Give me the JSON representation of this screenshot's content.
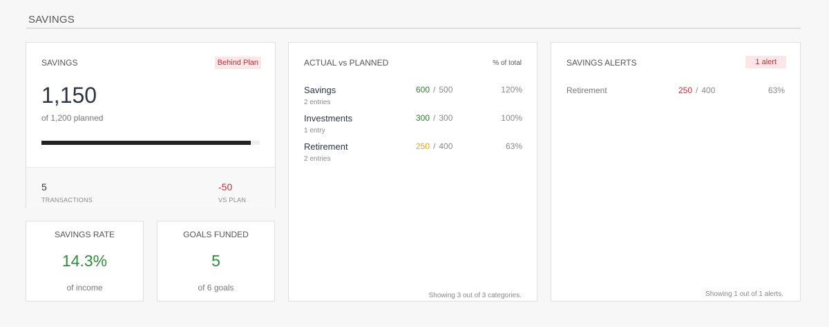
{
  "page": {
    "title": "SAVINGS"
  },
  "summary": {
    "title": "SAVINGS",
    "status_badge": "Behind Plan",
    "actual": "1,150",
    "planned_text": "of 1,200 planned",
    "progress_pct": 95.8,
    "transactions_value": "5",
    "transactions_label": "TRANSACTIONS",
    "vs_plan_value": "-50",
    "vs_plan_label": "VS PLAN"
  },
  "savings_rate": {
    "title": "SAVINGS RATE",
    "value": "14.3%",
    "sub": "of income"
  },
  "goals_funded": {
    "title": "GOALS FUNDED",
    "value": "5",
    "sub": "of 6 goals"
  },
  "actual_vs_planned": {
    "title": "ACTUAL vs PLANNED",
    "col_header": "% of total",
    "rows": [
      {
        "name": "Savings",
        "entries": "2 entries",
        "actual": "600",
        "planned": "500",
        "pct": "120%",
        "status": "green"
      },
      {
        "name": "Investments",
        "entries": "1 entry",
        "actual": "300",
        "planned": "300",
        "pct": "100%",
        "status": "green"
      },
      {
        "name": "Retirement",
        "entries": "2 entries",
        "actual": "250",
        "planned": "400",
        "pct": "63%",
        "status": "orange"
      }
    ],
    "footer": "Showing 3 out of 3 categories."
  },
  "alerts": {
    "title": "SAVINGS ALERTS",
    "badge": "1 alert",
    "rows": [
      {
        "name": "Retirement",
        "actual": "250",
        "planned": "400",
        "pct": "63%"
      }
    ],
    "footer": "Showing 1 out of 1 alerts."
  },
  "colors": {
    "green": "#2e7d32",
    "orange": "#f0a020",
    "red": "#c0303a",
    "badge_bg": "#fde6e8"
  }
}
